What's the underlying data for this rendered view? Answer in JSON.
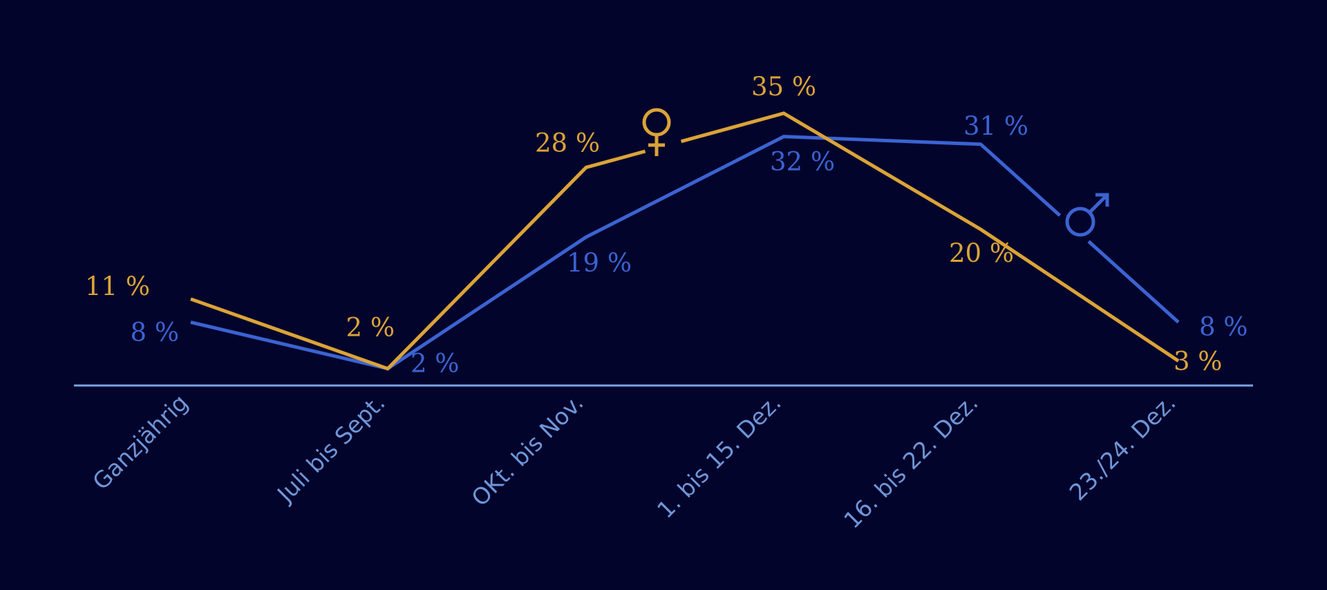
{
  "chart_data": {
    "type": "line",
    "categories": [
      "Ganzjährig",
      "Juli bis Sept.",
      "OKt. bis Nov.",
      "1. bis 15. Dez.",
      "16. bis 22. Dez.",
      "23./24. Dez."
    ],
    "series": [
      {
        "name": "♀",
        "icon": "female-symbol-icon",
        "color": "#dba438",
        "values": [
          11,
          2,
          28,
          35,
          20,
          3
        ]
      },
      {
        "name": "♂",
        "icon": "male-symbol-icon",
        "color": "#3b63d2",
        "values": [
          8,
          2,
          19,
          32,
          31,
          8
        ]
      }
    ],
    "value_labels": {
      "female": [
        "11 %",
        "2 %",
        "28 %",
        "35 %",
        "20 %",
        "3 %"
      ],
      "male": [
        "8 %",
        "2 %",
        "19 %",
        "32 %",
        "31 %",
        "8 %"
      ]
    },
    "ylim": [
      0,
      40
    ],
    "grid": false,
    "legend": "inline symbols on the lines",
    "colors": {
      "background": "#03042c",
      "axis": "#78a4e0",
      "category_text": "#6f96d8"
    }
  }
}
